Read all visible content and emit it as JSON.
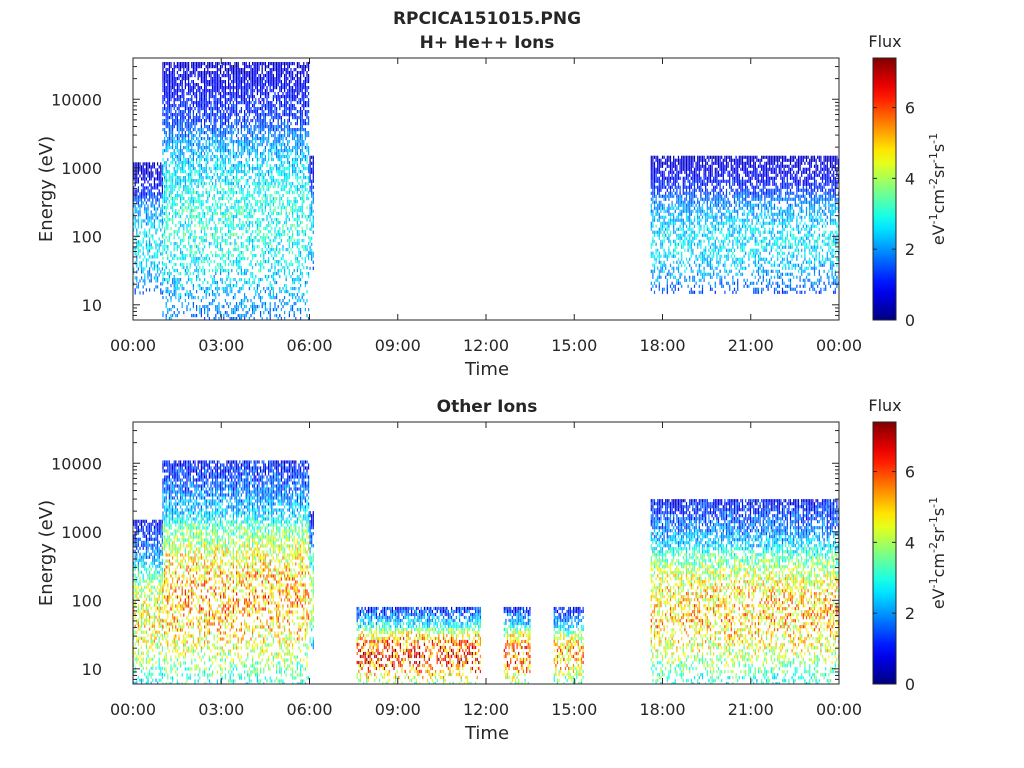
{
  "figure": {
    "title_line1": "RPCICA151015.PNG",
    "title_line2": "H+ He++ Ions"
  },
  "chart_data": [
    {
      "type": "heatmap",
      "title": "H+ He++ Ions",
      "xlabel": "Time",
      "ylabel": "Energy (eV)",
      "y_scale": "log",
      "ylim": [
        6,
        40000
      ],
      "x_ticks": [
        "00:00",
        "03:00",
        "06:00",
        "09:00",
        "12:00",
        "15:00",
        "18:00",
        "21:00",
        "00:00"
      ],
      "x_tick_hours": [
        0,
        3,
        6,
        9,
        12,
        15,
        18,
        21,
        24
      ],
      "y_ticks": [
        10,
        100,
        1000,
        10000
      ],
      "y_tick_labels": [
        "10",
        "100",
        "1000",
        "10000"
      ],
      "colorbar": {
        "title": "Flux",
        "label": "eV-1cm-2sr-1s-1",
        "range": [
          0,
          7.4
        ],
        "ticks": [
          0,
          2,
          4,
          6
        ],
        "tick_labels": [
          "0",
          "2",
          "4",
          "6"
        ],
        "colormap": "jet"
      },
      "regions": [
        {
          "t_start": 0.0,
          "t_end": 1.0,
          "e_low": 15,
          "e_high": 1200,
          "flux_peak": 2.6
        },
        {
          "t_start": 1.0,
          "t_end": 6.0,
          "e_low": 6,
          "e_high": 35000,
          "flux_peak": 3.0
        },
        {
          "t_start": 6.0,
          "t_end": 6.15,
          "e_low": 30,
          "e_high": 1500,
          "flux_peak": 2.5
        },
        {
          "t_start": 17.6,
          "t_end": 24.0,
          "e_low": 15,
          "e_high": 1500,
          "flux_peak": 2.6
        }
      ]
    },
    {
      "type": "heatmap",
      "title": "Other Ions",
      "xlabel": "Time",
      "ylabel": "Energy (eV)",
      "y_scale": "log",
      "ylim": [
        6,
        40000
      ],
      "x_ticks": [
        "00:00",
        "03:00",
        "06:00",
        "09:00",
        "12:00",
        "15:00",
        "18:00",
        "21:00",
        "00:00"
      ],
      "x_tick_hours": [
        0,
        3,
        6,
        9,
        12,
        15,
        18,
        21,
        24
      ],
      "y_ticks": [
        10,
        100,
        1000,
        10000
      ],
      "y_tick_labels": [
        "10",
        "100",
        "1000",
        "10000"
      ],
      "colorbar": {
        "title": "Flux",
        "label": "eV-1cm-2sr-1s-1",
        "range": [
          0,
          7.4
        ],
        "ticks": [
          0,
          2,
          4,
          6
        ],
        "tick_labels": [
          "0",
          "2",
          "4",
          "6"
        ],
        "colormap": "jet"
      },
      "regions": [
        {
          "t_start": 0.0,
          "t_end": 1.0,
          "e_low": 6,
          "e_high": 1500,
          "flux_peak": 4.6
        },
        {
          "t_start": 1.0,
          "t_end": 6.0,
          "e_low": 6,
          "e_high": 11000,
          "flux_peak": 5.2
        },
        {
          "t_start": 6.0,
          "t_end": 6.15,
          "e_low": 20,
          "e_high": 2000,
          "flux_peak": 4.0
        },
        {
          "t_start": 7.6,
          "t_end": 11.8,
          "e_low": 6,
          "e_high": 80,
          "flux_peak": 6.2
        },
        {
          "t_start": 12.6,
          "t_end": 13.5,
          "e_low": 6,
          "e_high": 80,
          "flux_peak": 5.8
        },
        {
          "t_start": 14.3,
          "t_end": 15.3,
          "e_low": 6,
          "e_high": 80,
          "flux_peak": 5.2
        },
        {
          "t_start": 17.6,
          "t_end": 24.0,
          "e_low": 6,
          "e_high": 3000,
          "flux_peak": 5.0
        }
      ]
    }
  ]
}
